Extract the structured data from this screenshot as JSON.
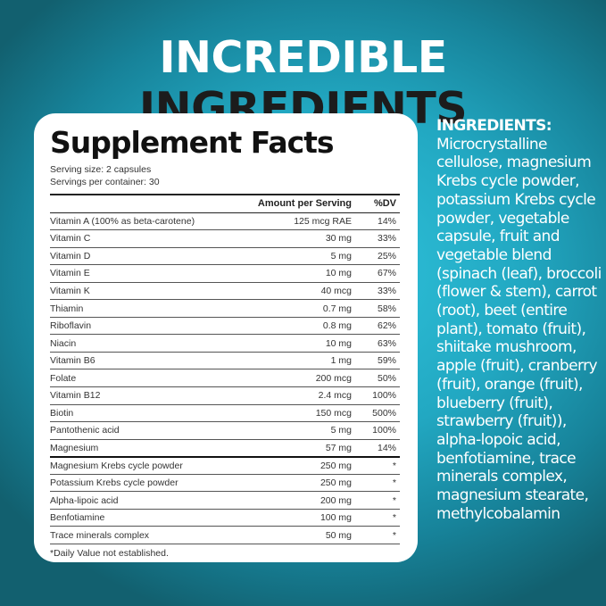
{
  "headline": {
    "part1": "INCREDIBLE",
    "part2": "INGREDIENTS"
  },
  "facts": {
    "title": "Supplement Facts",
    "serving_size": "Serving size: 2 capsules",
    "servings_per_container": "Servings per container: 30",
    "headers": {
      "amount": "Amount per Serving",
      "dv": "%DV"
    },
    "rows": [
      {
        "name": "Vitamin A (100% as beta-carotene)",
        "amount": "125 mcg RAE",
        "dv": "14%"
      },
      {
        "name": "Vitamin C",
        "amount": "30 mg",
        "dv": "33%"
      },
      {
        "name": "Vitamin D",
        "amount": "5 mg",
        "dv": "25%"
      },
      {
        "name": "Vitamin E",
        "amount": "10 mg",
        "dv": "67%"
      },
      {
        "name": "Vitamin K",
        "amount": "40 mcg",
        "dv": "33%"
      },
      {
        "name": "Thiamin",
        "amount": "0.7 mg",
        "dv": "58%"
      },
      {
        "name": "Riboflavin",
        "amount": "0.8 mg",
        "dv": "62%"
      },
      {
        "name": "Niacin",
        "amount": "10 mg",
        "dv": "63%"
      },
      {
        "name": "Vitamin B6",
        "amount": "1 mg",
        "dv": "59%"
      },
      {
        "name": "Folate",
        "amount": "200 mcg",
        "dv": "50%"
      },
      {
        "name": "Vitamin B12",
        "amount": "2.4 mcg",
        "dv": "100%"
      },
      {
        "name": "Biotin",
        "amount": "150 mcg",
        "dv": "500%"
      },
      {
        "name": "Pantothenic acid",
        "amount": "5 mg",
        "dv": "100%"
      },
      {
        "name": "Magnesium",
        "amount": "57 mg",
        "dv": "14%"
      },
      {
        "name": "Magnesium Krebs cycle powder",
        "amount": "250 mg",
        "dv": "*"
      },
      {
        "name": "Potassium Krebs cycle powder",
        "amount": "250 mg",
        "dv": "*"
      },
      {
        "name": "Alpha-lipoic acid",
        "amount": "200 mg",
        "dv": "*"
      },
      {
        "name": "Benfotiamine",
        "amount": "100 mg",
        "dv": "*"
      },
      {
        "name": "Trace minerals complex",
        "amount": "50 mg",
        "dv": "*"
      }
    ],
    "footnote": "*Daily Value not established."
  },
  "ingredients": {
    "title": "INGREDIENTS:",
    "text": "Microcrystalline cellulose, magnesium Krebs cycle powder, potassium Krebs cycle powder, vegetable capsule, fruit and vegetable blend (spinach (leaf), broccoli (flower & stem), carrot (root), beet (entire plant), tomato (fruit), shiitake mushroom, apple (fruit), cranberry (fruit), orange (fruit), blueberry (fruit), strawberry (fruit)), alpha-lopoic acid, benfotiamine, trace minerals complex, magnesium stearate, methylcobalamin"
  }
}
